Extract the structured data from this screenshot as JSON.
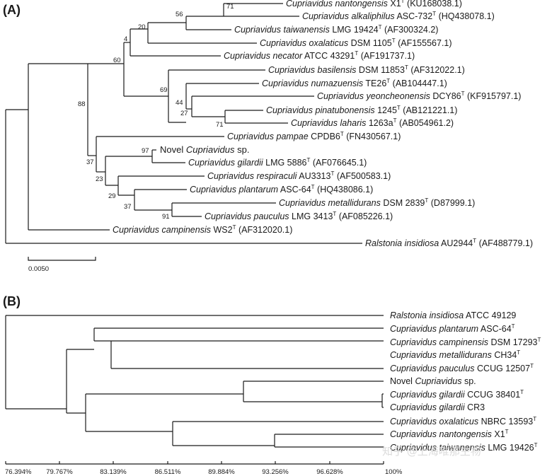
{
  "panel_a": {
    "label": "(A)",
    "scale_bar_label": "0.0050",
    "taxa": [
      {
        "id": "nantongensis",
        "genus": "Cupriavidus",
        "species": "nantongensis",
        "strain": "X1",
        "type": "T",
        "acc": "(KU168038.1)"
      },
      {
        "id": "alkaliphilus",
        "genus": "Cupriavidus",
        "species": "alkaliphilus",
        "strain": "ASC-732",
        "type": "T",
        "acc": "(HQ438078.1)"
      },
      {
        "id": "taiwanensis",
        "genus": "Cupriavidus",
        "species": "taiwanensis",
        "strain": "LMG 19424",
        "type": "T",
        "acc": "(AF300324.2)"
      },
      {
        "id": "oxalaticus",
        "genus": "Cupriavidus",
        "species": "oxalaticus",
        "strain": "DSM 1105",
        "type": "T",
        "acc": "(AF155567.1)"
      },
      {
        "id": "necator",
        "genus": "Cupriavidus",
        "species": "necator",
        "strain": "ATCC 43291",
        "type": "T",
        "acc": "(AF191737.1)"
      },
      {
        "id": "basilensis",
        "genus": "Cupriavidus",
        "species": "basilensis",
        "strain": "DSM 11853",
        "type": "T",
        "acc": "(AF312022.1)"
      },
      {
        "id": "numazuensis",
        "genus": "Cupriavidus",
        "species": "numazuensis",
        "strain": "TE26",
        "type": "T",
        "acc": "(AB104447.1)"
      },
      {
        "id": "yeoncheonensis",
        "genus": "Cupriavidus",
        "species": "yeoncheonensis",
        "strain": "DCY86",
        "type": "T",
        "acc": "(KF915797.1)"
      },
      {
        "id": "pinatubonensis",
        "genus": "Cupriavidus",
        "species": "pinatubonensis",
        "strain": "1245",
        "type": "T",
        "acc": "(AB121221.1)"
      },
      {
        "id": "laharis",
        "genus": "Cupriavidus",
        "species": "laharis",
        "strain": "1263a",
        "type": "T",
        "acc": "(AB054961.2)"
      },
      {
        "id": "pampae",
        "genus": "Cupriavidus",
        "species": "pampae",
        "strain": "CPDB6",
        "type": "T",
        "acc": "(FN430567.1)"
      },
      {
        "id": "novel",
        "prefix": "Novel",
        "genus": "Cupriavidus",
        "species": "sp.",
        "strain": "",
        "type": "",
        "acc": ""
      },
      {
        "id": "gilardii",
        "genus": "Cupriavidus",
        "species": "gilardii",
        "strain": "LMG 5886",
        "type": "T",
        "acc": "(AF076645.1)"
      },
      {
        "id": "respiraculi",
        "genus": "Cupriavidus",
        "species": "respiraculi",
        "strain": "AU3313",
        "type": "T",
        "acc": "(AF500583.1)"
      },
      {
        "id": "plantarum",
        "genus": "Cupriavidus",
        "species": "plantarum",
        "strain": "ASC-64",
        "type": "T",
        "acc": "(HQ438086.1)"
      },
      {
        "id": "metallidurans",
        "genus": "Cupriavidus",
        "species": "metallidurans",
        "strain": "DSM 2839",
        "type": "T",
        "acc": "(D87999.1)"
      },
      {
        "id": "pauculus",
        "genus": "Cupriavidus",
        "species": "pauculus",
        "strain": "LMG 3413",
        "type": "T",
        "acc": "(AF085226.1)"
      },
      {
        "id": "campinensis",
        "genus": "Cupriavidus",
        "species": "campinensis",
        "strain": "WS2",
        "type": "T",
        "acc": "(AF312020.1)"
      },
      {
        "id": "ralstonia",
        "genus": "Ralstonia",
        "species": "insidiosa",
        "strain": "AU2944",
        "type": "T",
        "acc": "(AF488779.1)"
      }
    ],
    "bootstrap": [
      "71",
      "56",
      "20",
      "4",
      "60",
      "69",
      "44",
      "27",
      "71",
      "88",
      "97",
      "37",
      "23",
      "29",
      "37",
      "91"
    ]
  },
  "panel_b": {
    "label": "(B)",
    "taxa": [
      {
        "id": "ralstonia",
        "genus": "Ralstonia",
        "species": "insidiosa",
        "strain": "ATCC 49129",
        "type": ""
      },
      {
        "id": "plantarum",
        "genus": "Cupriavidus",
        "species": "plantarum",
        "strain": "ASC-64",
        "type": "T"
      },
      {
        "id": "campinensis",
        "genus": "Cupriavidus",
        "species": "campinensis",
        "strain": "DSM 17293",
        "type": "T"
      },
      {
        "id": "metallidurans",
        "genus": "Cupriavidus",
        "species": "metallidurans",
        "strain": "CH34",
        "type": "T"
      },
      {
        "id": "pauculus",
        "genus": "Cupriavidus",
        "species": "pauculus",
        "strain": "CCUG 12507",
        "type": "T"
      },
      {
        "id": "novel",
        "prefix": "Novel",
        "genus": "Cupriavidus",
        "species": "sp.",
        "strain": "",
        "type": ""
      },
      {
        "id": "gilardii1",
        "genus": "Cupriavidus",
        "species": "gilardii",
        "strain": "CCUG 38401",
        "type": "T"
      },
      {
        "id": "gilardii2",
        "genus": "Cupriavidus",
        "species": "gilardii",
        "strain": "CR3",
        "type": ""
      },
      {
        "id": "oxalaticus",
        "genus": "Cupriavidus",
        "species": "oxalaticus",
        "strain": "NBRC 13593",
        "type": "T"
      },
      {
        "id": "nantongensis",
        "genus": "Cupriavidus",
        "species": "nantongensis",
        "strain": "X1",
        "type": "T"
      },
      {
        "id": "taiwanensis",
        "genus": "Cupriavidus",
        "species": "taiwanensis",
        "strain": "LMG 19426",
        "type": "T"
      }
    ],
    "axis_ticks": [
      "76.394%",
      "79.767%",
      "83.139%",
      "86.511%",
      "89.884%",
      "93.256%",
      "96.628%",
      "100%"
    ]
  },
  "watermark": "知乎 @上海唯那生物"
}
